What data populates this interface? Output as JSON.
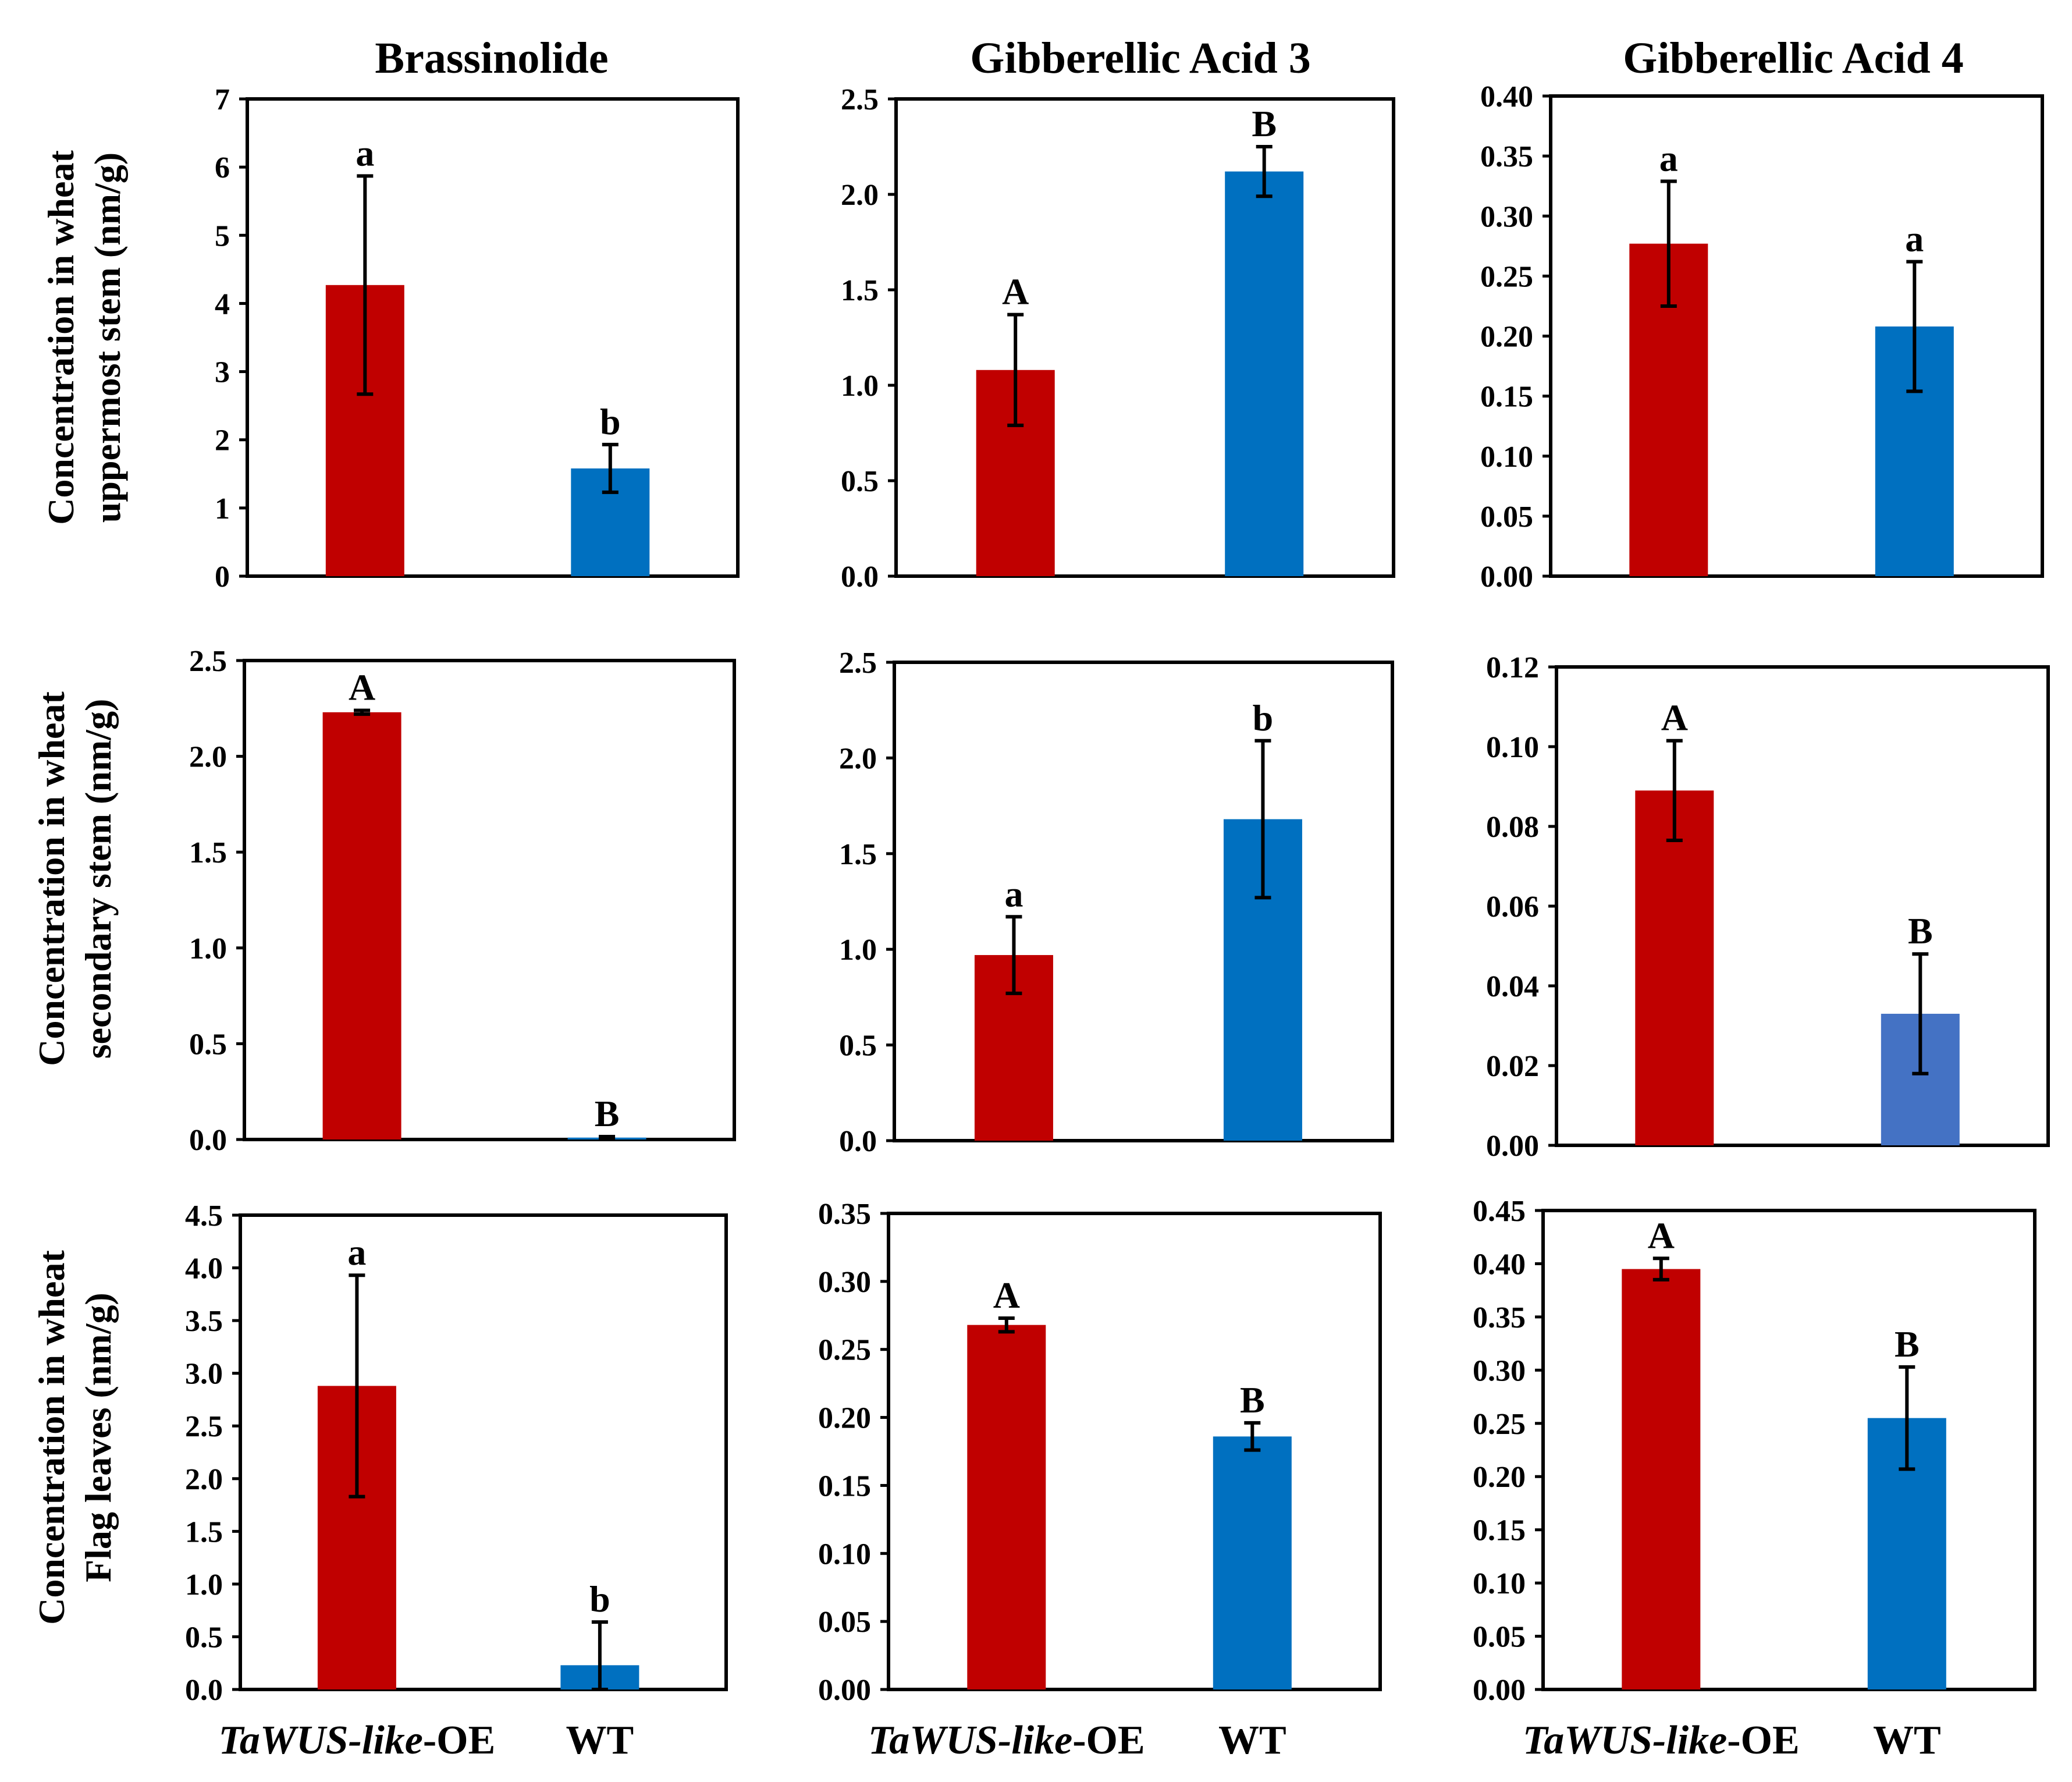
{
  "figure": {
    "column_titles": [
      "Brassinolide",
      "Gibberellic Acid 3",
      "Gibberellic Acid 4"
    ],
    "row_labels": [
      [
        "Concentration in wheat",
        "uppermost stem  (nm/g)"
      ],
      [
        "Concentration in wheat",
        "secondary stem  (nm/g)"
      ],
      [
        "Concentration in wheat",
        "Flag leaves (nm/g)"
      ]
    ],
    "x_categories": [
      {
        "italic": "TaWUS-like",
        "rest": "-OE"
      },
      {
        "italic": "",
        "rest": "WT"
      }
    ],
    "colors": {
      "oe": "#C00000",
      "wt": "#0070C0",
      "wt_alt": "#4472C4",
      "axis": "#000000"
    }
  },
  "chart_data": [
    {
      "id": "r1c1",
      "type": "bar",
      "title": "Brassinolide",
      "ylabel": "Concentration in wheat uppermost stem  (nm/g)",
      "categories": [
        "TaWUS-like-OE",
        "WT"
      ],
      "values": [
        4.27,
        1.58
      ],
      "errors": [
        1.6,
        0.35
      ],
      "labels": [
        "a",
        "b"
      ],
      "ylim": [
        0,
        7
      ],
      "ticks": [
        "0",
        "1",
        "2",
        "3",
        "4",
        "5",
        "6",
        "7"
      ]
    },
    {
      "id": "r1c2",
      "type": "bar",
      "title": "Gibberellic Acid 3",
      "ylabel": "",
      "categories": [
        "TaWUS-like-OE",
        "WT"
      ],
      "values": [
        1.08,
        2.12
      ],
      "errors": [
        0.29,
        0.13
      ],
      "labels": [
        "A",
        "B"
      ],
      "ylim": [
        0,
        2.5
      ],
      "ticks": [
        "0.0",
        "0.5",
        "1.0",
        "1.5",
        "2.0",
        "2.5"
      ]
    },
    {
      "id": "r1c3",
      "type": "bar",
      "title": "Gibberellic Acid 4",
      "ylabel": "",
      "categories": [
        "TaWUS-like-OE",
        "WT"
      ],
      "values": [
        0.277,
        0.208
      ],
      "errors": [
        0.052,
        0.054
      ],
      "labels": [
        "a",
        "a"
      ],
      "ylim": [
        0,
        0.4
      ],
      "ticks": [
        "0.00",
        "0.05",
        "0.10",
        "0.15",
        "0.20",
        "0.25",
        "0.30",
        "0.35",
        "0.40"
      ]
    },
    {
      "id": "r2c1",
      "type": "bar",
      "title": "",
      "ylabel": "Concentration in wheat secondary stem  (nm/g)",
      "categories": [
        "TaWUS-like-OE",
        "WT"
      ],
      "values": [
        2.23,
        0.01
      ],
      "errors": [
        0.01,
        0.005
      ],
      "labels": [
        "A",
        "B"
      ],
      "ylim": [
        0,
        2.5
      ],
      "ticks": [
        "0.0",
        "0.5",
        "1.0",
        "1.5",
        "2.0",
        "2.5"
      ]
    },
    {
      "id": "r2c2",
      "type": "bar",
      "title": "",
      "ylabel": "",
      "categories": [
        "TaWUS-like-OE",
        "WT"
      ],
      "values": [
        0.97,
        1.68
      ],
      "errors": [
        0.2,
        0.41
      ],
      "labels": [
        "a",
        "b"
      ],
      "ylim": [
        0,
        2.5
      ],
      "ticks": [
        "0.0",
        "0.5",
        "1.0",
        "1.5",
        "2.0",
        "2.5"
      ]
    },
    {
      "id": "r2c3",
      "type": "bar",
      "title": "",
      "ylabel": "",
      "categories": [
        "TaWUS-like-OE",
        "WT"
      ],
      "values": [
        0.089,
        0.033
      ],
      "errors": [
        0.0125,
        0.015
      ],
      "labels": [
        "A",
        "B"
      ],
      "ylim": [
        0,
        0.12
      ],
      "ticks": [
        "0.00",
        "0.02",
        "0.04",
        "0.06",
        "0.08",
        "0.10",
        "0.12"
      ]
    },
    {
      "id": "r3c1",
      "type": "bar",
      "title": "",
      "ylabel": "Concentration in wheat Flag leaves (nm/g)",
      "categories": [
        "TaWUS-like-OE",
        "WT"
      ],
      "values": [
        2.88,
        0.23
      ],
      "errors": [
        1.05,
        0.41
      ],
      "labels": [
        "a",
        "b"
      ],
      "ylim": [
        0,
        4.5
      ],
      "ticks": [
        "0.0",
        "0.5",
        "1.0",
        "1.5",
        "2.0",
        "2.5",
        "3.0",
        "3.5",
        "4.0",
        "4.5"
      ]
    },
    {
      "id": "r3c2",
      "type": "bar",
      "title": "",
      "ylabel": "",
      "categories": [
        "TaWUS-like-OE",
        "WT"
      ],
      "values": [
        0.268,
        0.186
      ],
      "errors": [
        0.005,
        0.01
      ],
      "labels": [
        "A",
        "B"
      ],
      "ylim": [
        0,
        0.35
      ],
      "ticks": [
        "0.00",
        "0.05",
        "0.10",
        "0.15",
        "0.20",
        "0.25",
        "0.30",
        "0.35"
      ]
    },
    {
      "id": "r3c3",
      "type": "bar",
      "title": "",
      "ylabel": "",
      "categories": [
        "TaWUS-like-OE",
        "WT"
      ],
      "values": [
        0.395,
        0.255
      ],
      "errors": [
        0.01,
        0.048
      ],
      "labels": [
        "A",
        "B"
      ],
      "ylim": [
        0,
        0.45
      ],
      "ticks": [
        "0.00",
        "0.05",
        "0.10",
        "0.15",
        "0.20",
        "0.25",
        "0.30",
        "0.35",
        "0.40",
        "0.45"
      ]
    }
  ]
}
